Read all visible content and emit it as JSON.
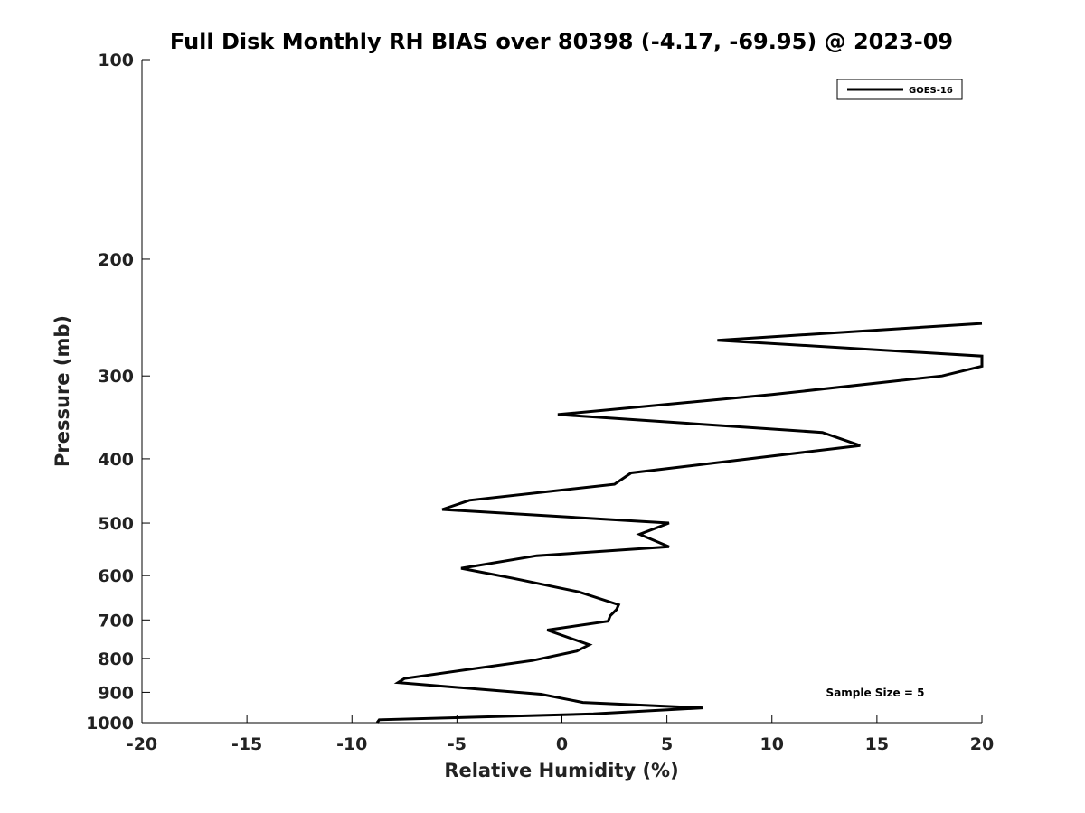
{
  "chart_data": {
    "type": "line",
    "title": "Full Disk Monthly RH BIAS over 80398 (-4.17, -69.95) @ 2023-09",
    "xlabel": "Relative Humidity (%)",
    "ylabel": "Pressure (mb)",
    "xlim": [
      -20,
      20
    ],
    "ylim": [
      100,
      1000
    ],
    "y_scale": "log",
    "y_inverted": true,
    "grid": false,
    "xticks": [
      -20,
      -15,
      -10,
      -5,
      0,
      5,
      10,
      15,
      20
    ],
    "xtick_labels": [
      "-20",
      "-15",
      "-10",
      "-5",
      "0",
      "5",
      "10",
      "15",
      "20"
    ],
    "yticks": [
      100,
      200,
      300,
      400,
      500,
      600,
      700,
      800,
      900,
      1000
    ],
    "ytick_labels": [
      "100",
      "200",
      "300",
      "400",
      "500",
      "600",
      "700",
      "800",
      "900",
      "1000"
    ],
    "legend": {
      "position": "top-right",
      "entries": [
        "GOES-16"
      ]
    },
    "annotation": "Sample Size = 5",
    "series": [
      {
        "name": "GOES-16",
        "color": "#000000",
        "points": [
          [
            20.0,
            250
          ],
          [
            7.4,
            265
          ],
          [
            20.0,
            280
          ],
          [
            20.0,
            290
          ],
          [
            18.1,
            300
          ],
          [
            10.0,
            320
          ],
          [
            -0.2,
            343
          ],
          [
            12.4,
            365
          ],
          [
            14.2,
            382
          ],
          [
            9.5,
            398
          ],
          [
            3.3,
            420
          ],
          [
            2.5,
            437
          ],
          [
            -4.4,
            462
          ],
          [
            -5.7,
            477
          ],
          [
            5.1,
            500
          ],
          [
            3.7,
            520
          ],
          [
            5.1,
            543
          ],
          [
            -1.2,
            560
          ],
          [
            -4.8,
            585
          ],
          [
            -2.3,
            606
          ],
          [
            0.8,
            635
          ],
          [
            2.7,
            664
          ],
          [
            2.6,
            675
          ],
          [
            2.3,
            690
          ],
          [
            2.2,
            703
          ],
          [
            -0.7,
            725
          ],
          [
            1.3,
            763
          ],
          [
            0.7,
            780
          ],
          [
            -1.4,
            806
          ],
          [
            -4.3,
            830
          ],
          [
            -7.5,
            858
          ],
          [
            -7.8,
            870
          ],
          [
            -1.0,
            906
          ],
          [
            1.0,
            932
          ],
          [
            6.7,
            950
          ],
          [
            1.5,
            970
          ],
          [
            -8.7,
            990
          ],
          [
            -8.8,
            1000
          ]
        ]
      }
    ]
  }
}
